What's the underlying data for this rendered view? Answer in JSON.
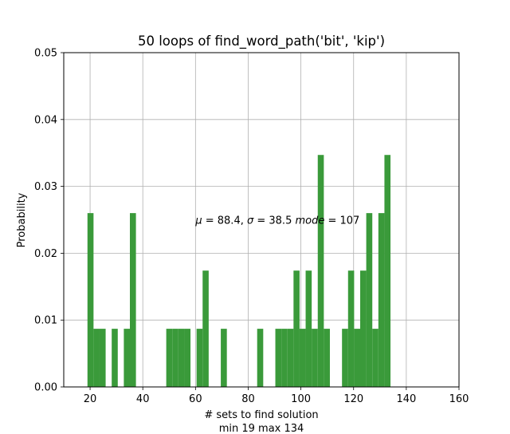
{
  "chart_data": {
    "type": "bar",
    "title": "50 loops of find_word_path('bit', 'kip')",
    "xlabel": "# sets to find solution",
    "xlabel2": "min 19 max 134",
    "ylabel": "Probability",
    "xlim": [
      10,
      160
    ],
    "ylim": [
      0,
      0.05
    ],
    "xticks": [
      20,
      40,
      60,
      80,
      100,
      120,
      140,
      160
    ],
    "yticks": [
      0.0,
      0.01,
      0.02,
      0.03,
      0.04,
      0.05
    ],
    "ytick_labels": [
      "0.00",
      "0.01",
      "0.02",
      "0.03",
      "0.04",
      "0.05"
    ],
    "grid": true,
    "bar_color": "#3a9a3a",
    "annotation": {
      "mu_symbol": "μ",
      "mu_value": " = 88.4,  ",
      "sigma_symbol": "σ",
      "sigma_value": " = 38.5 ",
      "mode_label": "mode",
      "mode_value": " = 107",
      "x": 60,
      "y": 0.025
    },
    "bins": [
      {
        "x0": 19.0,
        "x1": 21.3,
        "y": 0.026
      },
      {
        "x0": 21.3,
        "x1": 23.6,
        "y": 0.0087
      },
      {
        "x0": 23.6,
        "x1": 25.9,
        "y": 0.0087
      },
      {
        "x0": 28.2,
        "x1": 30.5,
        "y": 0.0087
      },
      {
        "x0": 32.8,
        "x1": 35.1,
        "y": 0.0087
      },
      {
        "x0": 35.1,
        "x1": 37.4,
        "y": 0.026
      },
      {
        "x0": 48.9,
        "x1": 51.2,
        "y": 0.0087
      },
      {
        "x0": 51.2,
        "x1": 53.5,
        "y": 0.0087
      },
      {
        "x0": 53.5,
        "x1": 55.8,
        "y": 0.0087
      },
      {
        "x0": 55.8,
        "x1": 58.1,
        "y": 0.0087
      },
      {
        "x0": 60.4,
        "x1": 62.7,
        "y": 0.0087
      },
      {
        "x0": 62.7,
        "x1": 65.0,
        "y": 0.0174
      },
      {
        "x0": 69.6,
        "x1": 71.9,
        "y": 0.0087
      },
      {
        "x0": 83.4,
        "x1": 85.7,
        "y": 0.0087
      },
      {
        "x0": 90.3,
        "x1": 92.6,
        "y": 0.0087
      },
      {
        "x0": 92.6,
        "x1": 94.9,
        "y": 0.0087
      },
      {
        "x0": 94.9,
        "x1": 97.2,
        "y": 0.0087
      },
      {
        "x0": 97.2,
        "x1": 99.5,
        "y": 0.0174
      },
      {
        "x0": 99.5,
        "x1": 101.8,
        "y": 0.0087
      },
      {
        "x0": 101.8,
        "x1": 104.1,
        "y": 0.0174
      },
      {
        "x0": 104.1,
        "x1": 106.4,
        "y": 0.0087
      },
      {
        "x0": 106.4,
        "x1": 108.7,
        "y": 0.0347
      },
      {
        "x0": 108.7,
        "x1": 111.0,
        "y": 0.0087
      },
      {
        "x0": 115.6,
        "x1": 117.9,
        "y": 0.0087
      },
      {
        "x0": 117.9,
        "x1": 120.2,
        "y": 0.0174
      },
      {
        "x0": 120.2,
        "x1": 122.5,
        "y": 0.0087
      },
      {
        "x0": 122.5,
        "x1": 124.8,
        "y": 0.0174
      },
      {
        "x0": 124.8,
        "x1": 127.1,
        "y": 0.026
      },
      {
        "x0": 127.1,
        "x1": 129.4,
        "y": 0.0087
      },
      {
        "x0": 129.4,
        "x1": 131.7,
        "y": 0.026
      },
      {
        "x0": 131.7,
        "x1": 134.0,
        "y": 0.0347
      }
    ]
  }
}
